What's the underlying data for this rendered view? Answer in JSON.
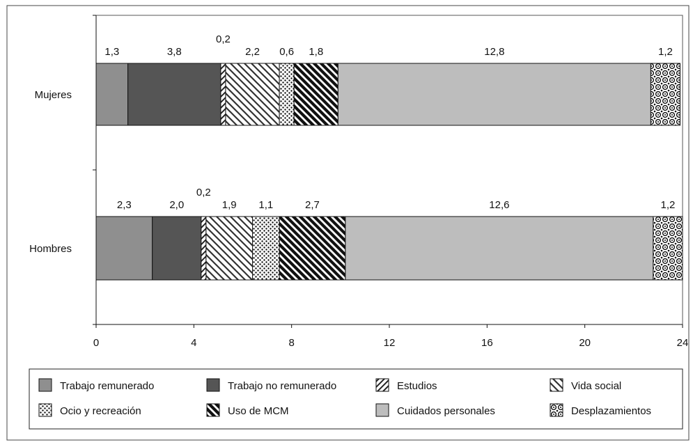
{
  "chart_data": {
    "type": "bar",
    "orientation": "horizontal",
    "stacked": true,
    "categories": [
      "Mujeres",
      "Hombres"
    ],
    "series": [
      {
        "name": "Trabajo remunerado",
        "values": [
          1.3,
          2.3
        ],
        "labels": [
          "1,3",
          "2,3"
        ],
        "pattern": "solid-light",
        "color": "#8f8f8f"
      },
      {
        "name": "Trabajo no remunerado",
        "values": [
          3.8,
          2.0
        ],
        "labels": [
          "3,8",
          "2,0"
        ],
        "pattern": "solid-dark",
        "color": "#555555"
      },
      {
        "name": "Estudios",
        "values": [
          0.2,
          0.2
        ],
        "labels": [
          "0,2",
          "0,2"
        ],
        "pattern": "diag-up"
      },
      {
        "name": "Vida social",
        "values": [
          2.2,
          1.9
        ],
        "labels": [
          "2,2",
          "1,9"
        ],
        "pattern": "diag-down"
      },
      {
        "name": "Ocio y recreación",
        "values": [
          0.6,
          1.1
        ],
        "labels": [
          "0,6",
          "1,1"
        ],
        "pattern": "dots"
      },
      {
        "name": "Uso de MCM",
        "values": [
          1.8,
          2.7
        ],
        "labels": [
          "1,8",
          "2,7"
        ],
        "pattern": "diag-down-bold"
      },
      {
        "name": "Cuidados personales",
        "values": [
          12.8,
          12.6
        ],
        "labels": [
          "12,8",
          "12,6"
        ],
        "pattern": "solid-pale",
        "color": "#bdbdbd"
      },
      {
        "name": "Desplazamientos",
        "values": [
          1.2,
          1.2
        ],
        "labels": [
          "1,2",
          "1,2"
        ],
        "pattern": "circles"
      }
    ],
    "xlim": [
      0,
      24
    ],
    "xticks": [
      "0",
      "4",
      "8",
      "12",
      "16",
      "20",
      "24"
    ],
    "grid": false,
    "legend_position": "bottom"
  }
}
